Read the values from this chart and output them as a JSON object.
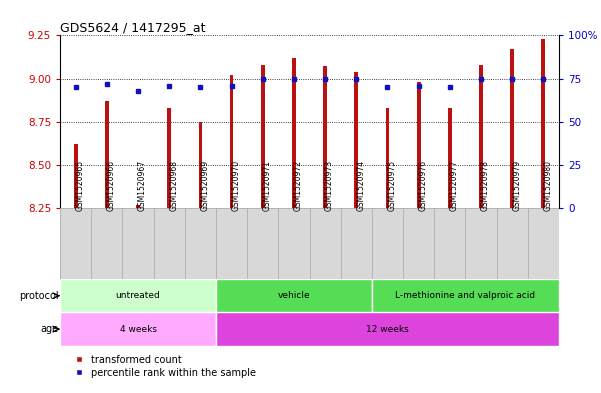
{
  "title": "GDS5624 / 1417295_at",
  "samples": [
    "GSM1520965",
    "GSM1520966",
    "GSM1520967",
    "GSM1520968",
    "GSM1520969",
    "GSM1520970",
    "GSM1520971",
    "GSM1520972",
    "GSM1520973",
    "GSM1520974",
    "GSM1520975",
    "GSM1520976",
    "GSM1520977",
    "GSM1520978",
    "GSM1520979",
    "GSM1520980"
  ],
  "transformed_count": [
    8.62,
    8.87,
    8.27,
    8.83,
    8.75,
    9.02,
    9.08,
    9.12,
    9.07,
    9.04,
    8.83,
    8.98,
    8.83,
    9.08,
    9.17,
    9.23
  ],
  "percentile_rank": [
    70,
    72,
    68,
    70.5,
    70,
    71,
    75,
    75,
    75,
    75,
    70,
    71,
    70,
    75,
    75,
    75
  ],
  "ylim_left": [
    8.25,
    9.25
  ],
  "ylim_right": [
    0,
    100
  ],
  "yticks_left": [
    8.25,
    8.5,
    8.75,
    9.0,
    9.25
  ],
  "yticks_right": [
    0,
    25,
    50,
    75,
    100
  ],
  "bar_color": "#bb1111",
  "dot_color": "#1111bb",
  "bar_bottom": 8.25,
  "bar_width": 0.12,
  "protocol_groups": [
    {
      "label": "untreated",
      "start": 0,
      "end": 4,
      "color": "#ccffcc"
    },
    {
      "label": "vehicle",
      "start": 5,
      "end": 9,
      "color": "#55dd55"
    },
    {
      "label": "L-methionine and valproic acid",
      "start": 10,
      "end": 15,
      "color": "#55dd55"
    }
  ],
  "age_groups": [
    {
      "label": "4 weeks",
      "start": 0,
      "end": 4,
      "color": "#ffaaff"
    },
    {
      "label": "12 weeks",
      "start": 5,
      "end": 15,
      "color": "#dd44dd"
    }
  ],
  "left_axis_color": "#cc0000",
  "right_axis_color": "#0000cc",
  "tick_label_bg": "#dddddd",
  "legend_items": [
    {
      "label": "transformed count",
      "color": "#bb1111"
    },
    {
      "label": "percentile rank within the sample",
      "color": "#1111bb"
    }
  ]
}
